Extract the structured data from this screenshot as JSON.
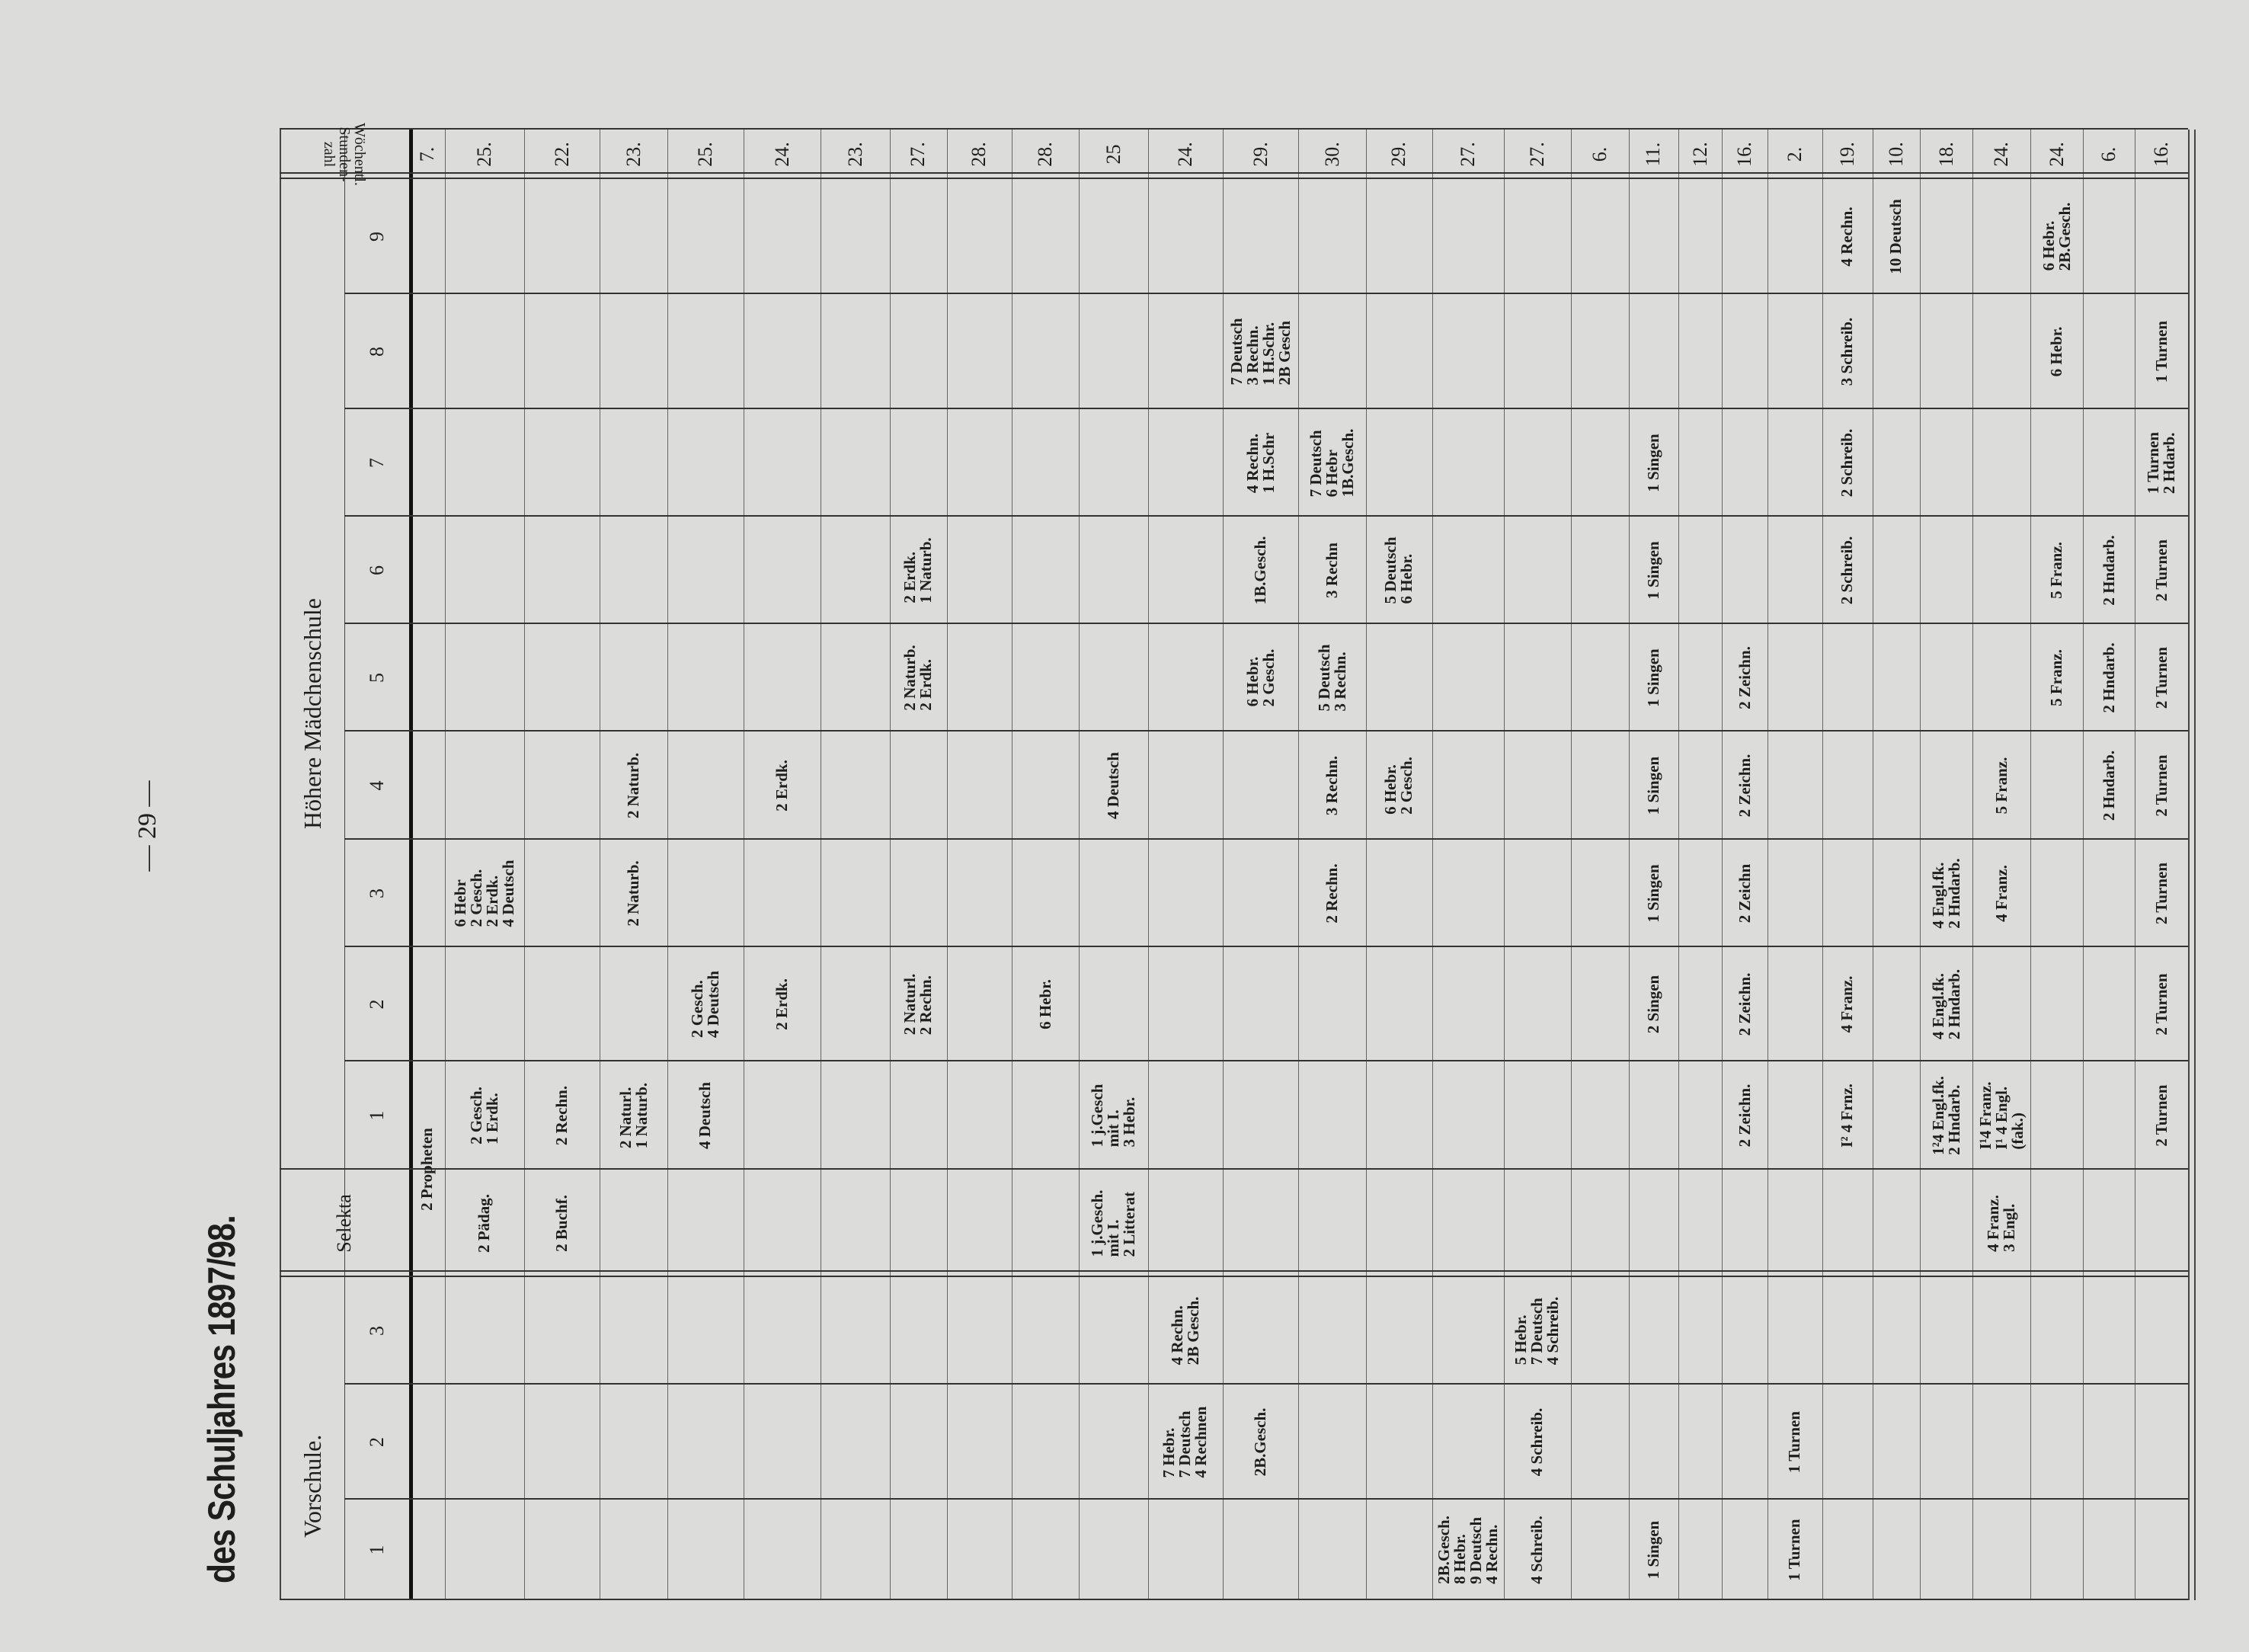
{
  "page_number": "— 29 —",
  "title": "des Schuljahres 1897/98.",
  "groups": {
    "vorschule": "Vorschule.",
    "hoehere": "Höhere Mädchenschule"
  },
  "columns": {
    "v1": "1",
    "v2": "2",
    "v3": "3",
    "sel": "Selekta",
    "c1": "1",
    "c2": "2",
    "c3": "3",
    "c4": "4",
    "c5": "5",
    "c6": "6",
    "c7": "7",
    "c8": "8",
    "c9": "9",
    "total": "Wöchentl. Stunden-\nzahl"
  },
  "rows": [
    {
      "total": "7.",
      "cells": [
        {
          "col": "sel",
          "span": 2,
          "text": "2 Propheten"
        }
      ]
    },
    {
      "total": "25.",
      "cells": [
        {
          "col": "sel",
          "text": "2 Pädag."
        },
        {
          "col": "c1",
          "text": "2 Gesch.\n1 Erdk."
        },
        {
          "col": "c3",
          "text": "6 Hebr\n2 Gesch.\n2 Erdk.\n4 Deutsch"
        }
      ]
    },
    {
      "total": "22.",
      "cells": [
        {
          "col": "sel",
          "text": "2 Buchf."
        },
        {
          "col": "c1",
          "text": "2 Rechn."
        }
      ]
    },
    {
      "total": "23.",
      "cells": [
        {
          "col": "c1",
          "text": "2 Naturl.\n1 Naturb."
        },
        {
          "col": "c3",
          "text": "2 Naturb."
        },
        {
          "col": "c4",
          "text": "2 Naturb."
        }
      ]
    },
    {
      "total": "25.",
      "cells": [
        {
          "col": "c1",
          "text": "4 Deutsch"
        },
        {
          "col": "c2",
          "text": "2 Gesch.\n4 Deutsch"
        }
      ]
    },
    {
      "total": "24.",
      "cells": [
        {
          "col": "c2",
          "text": "2 Erdk."
        },
        {
          "col": "c4",
          "text": "2 Erdk."
        }
      ]
    },
    {
      "total": "23.",
      "cells": []
    },
    {
      "total": "27.",
      "cells": [
        {
          "col": "c2",
          "text": "2 Naturl.\n2 Rechn."
        },
        {
          "col": "c5",
          "text": "2 Naturb.\n2 Erdk."
        },
        {
          "col": "c6",
          "text": "2 Erdk.\n1 Naturb."
        }
      ]
    },
    {
      "total": "28.",
      "cells": []
    },
    {
      "total": "28.",
      "cells": [
        {
          "col": "c2",
          "text": "6 Hebr."
        }
      ]
    },
    {
      "total": "25",
      "cells": [
        {
          "col": "sel",
          "text": "1 j.Gesch.\nmit I.\n2 Litterat"
        },
        {
          "col": "c1",
          "text": "1 j.Gesch\nmit I.\n3 Hebr."
        },
        {
          "col": "c4",
          "text": "4 Deutsch"
        }
      ]
    },
    {
      "total": "24.",
      "cells": [
        {
          "col": "v2",
          "text": "7 Hebr.\n7 Deutsch\n4 Rechnen"
        },
        {
          "col": "v3",
          "text": "4 Rechn.\n2B Gesch."
        }
      ]
    },
    {
      "total": "29.",
      "cells": [
        {
          "col": "v2",
          "text": "2B.Gesch."
        },
        {
          "col": "c5",
          "text": "6 Hebr.\n2 Gesch."
        },
        {
          "col": "c6",
          "text": "1B.Gesch."
        },
        {
          "col": "c7",
          "text": "4 Rechn.\n1 H.Schr"
        },
        {
          "col": "c8",
          "text": "7 Deutsch\n3 Rechn.\n1 H.Schr.\n2B Gesch"
        }
      ]
    },
    {
      "total": "30.",
      "cells": [
        {
          "col": "c3",
          "text": "2 Rechn."
        },
        {
          "col": "c4",
          "text": "3 Rechn."
        },
        {
          "col": "c5",
          "text": "5 Deutsch\n3 Rechn."
        },
        {
          "col": "c6",
          "text": "3 Rechn"
        },
        {
          "col": "c7",
          "text": "7 Deutsch\n6 Hebr\n1B.Gesch."
        }
      ]
    },
    {
      "total": "29.",
      "cells": [
        {
          "col": "c4",
          "text": "6 Hebr.\n2 Gesch."
        },
        {
          "col": "c6",
          "text": "5 Deutsch\n6 Hebr."
        }
      ]
    },
    {
      "total": "27.",
      "cells": [
        {
          "col": "v1",
          "text": "2B.Gesch.\n8 Hebr.\n9 Deutsch\n4 Rechn."
        }
      ]
    },
    {
      "total": "27.",
      "cells": [
        {
          "col": "v1",
          "text": "4 Schreib."
        },
        {
          "col": "v2",
          "text": "4 Schreib."
        },
        {
          "col": "v3",
          "text": "5 Hebr.\n7 Deutsch\n4 Schreib."
        }
      ]
    },
    {
      "total": "6.",
      "cells": []
    },
    {
      "total": "11.",
      "cells": [
        {
          "col": "v1",
          "text": "1 Singen"
        },
        {
          "col": "c2",
          "text": "2 Singen"
        },
        {
          "col": "c3",
          "text": "1 Singen"
        },
        {
          "col": "c4",
          "text": "1 Singen"
        },
        {
          "col": "c5",
          "text": "1 Singen"
        },
        {
          "col": "c6",
          "text": "1 Singen"
        },
        {
          "col": "c7",
          "text": "1 Singen"
        }
      ]
    },
    {
      "total": "12.",
      "cells": []
    },
    {
      "total": "16.",
      "cells": [
        {
          "col": "c1",
          "text": "2 Zeichn."
        },
        {
          "col": "c2",
          "text": "2 Zeichn."
        },
        {
          "col": "c3",
          "text": "2 Zeichn"
        },
        {
          "col": "c4",
          "text": "2 Zeichn."
        },
        {
          "col": "c5",
          "text": "2 Zeichn."
        }
      ]
    },
    {
      "total": "2.",
      "cells": [
        {
          "col": "v1",
          "text": "1 Turnen"
        },
        {
          "col": "v2",
          "text": "1 Turnen"
        }
      ]
    },
    {
      "total": "19.",
      "cells": [
        {
          "col": "c1",
          "text": "I² 4 Frnz."
        },
        {
          "col": "c2",
          "text": "4 Franz."
        },
        {
          "col": "c6",
          "text": "2 Schreib."
        },
        {
          "col": "c7",
          "text": "2 Schreib."
        },
        {
          "col": "c8",
          "text": "3 Schreib."
        },
        {
          "col": "c9",
          "text": "4 Rechn."
        }
      ]
    },
    {
      "total": "10.",
      "cells": [
        {
          "col": "c9",
          "text": "10 Deutsch"
        }
      ]
    },
    {
      "total": "18.",
      "cells": [
        {
          "col": "c1",
          "text": "1²4 Engl.fk.\n2 Hndarb."
        },
        {
          "col": "c2",
          "text": "4 Engl.fk.\n2 Hndarb."
        },
        {
          "col": "c3",
          "text": "4 Engl.fk.\n2 Hndarb."
        }
      ]
    },
    {
      "total": "24.",
      "cells": [
        {
          "col": "sel",
          "text": "4 Franz.\n3 Engl."
        },
        {
          "col": "c1",
          "text": "I¹4 Franz.\nI¹ 4 Engl.\n(fak.)"
        },
        {
          "col": "c3",
          "text": "4 Franz."
        },
        {
          "col": "c4",
          "text": "5 Franz."
        }
      ]
    },
    {
      "total": "24.",
      "cells": [
        {
          "col": "c5",
          "text": "5 Franz."
        },
        {
          "col": "c6",
          "text": "5 Franz."
        },
        {
          "col": "c8",
          "text": "6 Hebr."
        },
        {
          "col": "c9",
          "text": "6 Hebr.\n2B.Gesch."
        }
      ]
    },
    {
      "total": "6.",
      "cells": [
        {
          "col": "c4",
          "text": "2 Hndarb."
        },
        {
          "col": "c5",
          "text": "2 Hndarb."
        },
        {
          "col": "c6",
          "text": "2 Hndarb."
        }
      ]
    },
    {
      "total": "16.",
      "cells": [
        {
          "col": "c1",
          "text": "2 Turnen"
        },
        {
          "col": "c2",
          "text": "2 Turnen"
        },
        {
          "col": "c3",
          "text": "2 Turnen"
        },
        {
          "col": "c4",
          "text": "2 Turnen"
        },
        {
          "col": "c5",
          "text": "2 Turnen"
        },
        {
          "col": "c6",
          "text": "2 Turnen"
        },
        {
          "col": "c7",
          "text": "1 Turnen\n2 Hdarb."
        },
        {
          "col": "c8",
          "text": "1 Turnen"
        }
      ]
    }
  ]
}
